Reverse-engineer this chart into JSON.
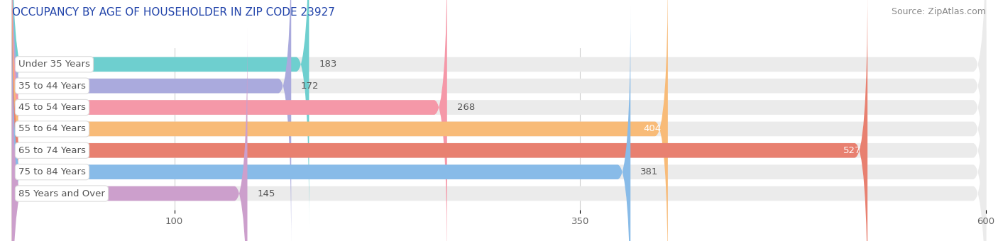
{
  "title": "OCCUPANCY BY AGE OF HOUSEHOLDER IN ZIP CODE 23927",
  "source": "Source: ZipAtlas.com",
  "categories": [
    "Under 35 Years",
    "35 to 44 Years",
    "45 to 54 Years",
    "55 to 64 Years",
    "65 to 74 Years",
    "75 to 84 Years",
    "85 Years and Over"
  ],
  "values": [
    183,
    172,
    268,
    404,
    527,
    381,
    145
  ],
  "bar_colors": [
    "#6ecfcf",
    "#aaaadd",
    "#f598a8",
    "#f8bb78",
    "#e88070",
    "#88bbe8",
    "#cc9fcc"
  ],
  "bar_bg_color": "#ebebeb",
  "xlim": [
    0,
    600
  ],
  "xticks": [
    100,
    350,
    600
  ],
  "title_fontsize": 11,
  "source_fontsize": 9,
  "tick_fontsize": 9.5,
  "bar_label_fontsize": 9.5,
  "category_fontsize": 9.5,
  "background_color": "#ffffff",
  "bar_height": 0.68,
  "rounding_size": 8,
  "white_label_threshold": 390
}
